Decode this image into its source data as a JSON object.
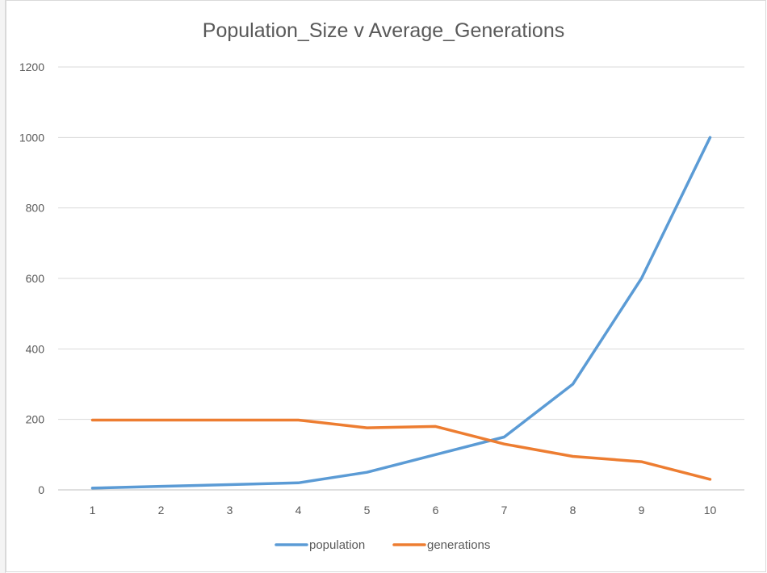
{
  "chart_data": {
    "type": "line",
    "title": "Population_Size v Average_Generations",
    "xlabel": "",
    "ylabel": "",
    "categories": [
      "1",
      "2",
      "3",
      "4",
      "5",
      "6",
      "7",
      "8",
      "9",
      "10"
    ],
    "ylim": [
      0,
      1200
    ],
    "yticks": [
      "0",
      "200",
      "400",
      "600",
      "800",
      "1000",
      "1200"
    ],
    "grid": true,
    "legend_position": "bottom",
    "series": [
      {
        "name": "population",
        "color": "#5b9bd5",
        "values": [
          5,
          10,
          15,
          20,
          50,
          100,
          150,
          300,
          600,
          1000
        ]
      },
      {
        "name": "generations",
        "color": "#ed7d31",
        "values": [
          198,
          198,
          198,
          198,
          176,
          180,
          130,
          95,
          80,
          30
        ]
      }
    ]
  }
}
